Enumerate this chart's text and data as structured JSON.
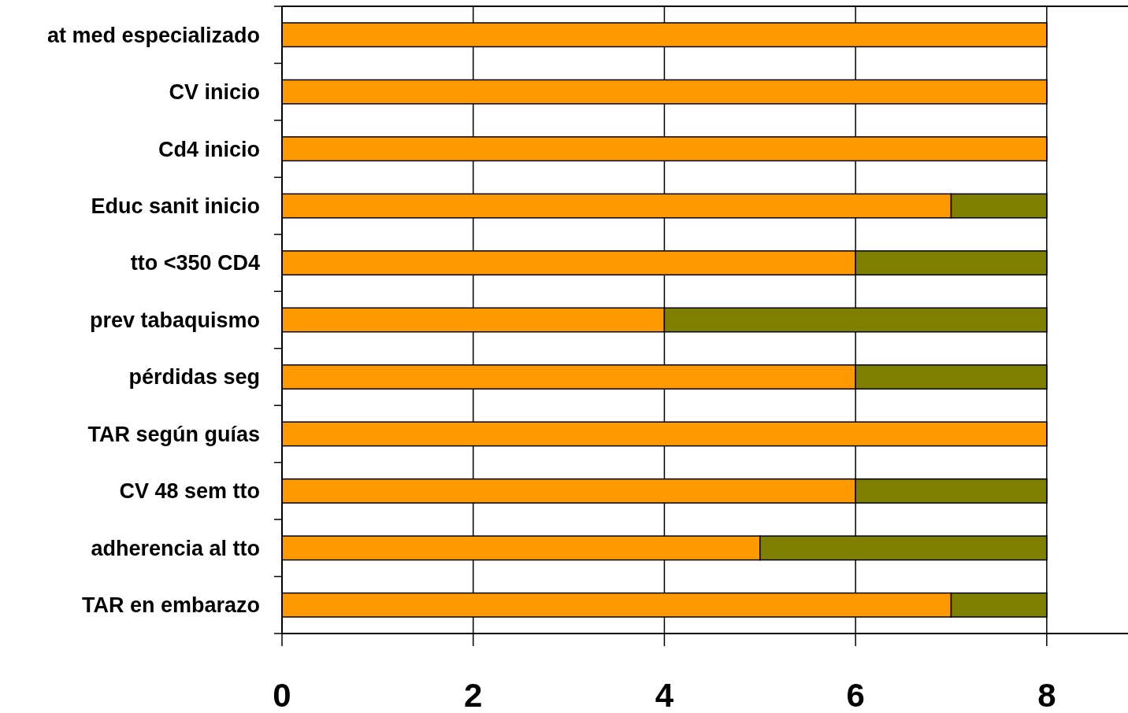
{
  "chart_data": {
    "type": "bar",
    "orientation": "horizontal",
    "stacked": true,
    "categories": [
      "at med especializado",
      "CV inicio",
      "Cd4 inicio",
      "Educ sanit inicio",
      "tto <350 CD4",
      "prev tabaquismo",
      "pérdidas seg",
      "TAR según guías",
      "CV 48 sem tto",
      "adherencia al tto",
      "TAR en embarazo"
    ],
    "series": [
      {
        "color": "#ff9900",
        "values": [
          8,
          8,
          8,
          7,
          6,
          4,
          6,
          8,
          6,
          5,
          7
        ]
      },
      {
        "color": "#808000",
        "values": [
          null,
          null,
          null,
          1,
          2,
          4,
          2,
          null,
          2,
          3,
          1
        ]
      }
    ],
    "xlim": [
      0,
      8.85
    ],
    "xticks": [
      0,
      2,
      4,
      6,
      8
    ],
    "grid": "x"
  }
}
